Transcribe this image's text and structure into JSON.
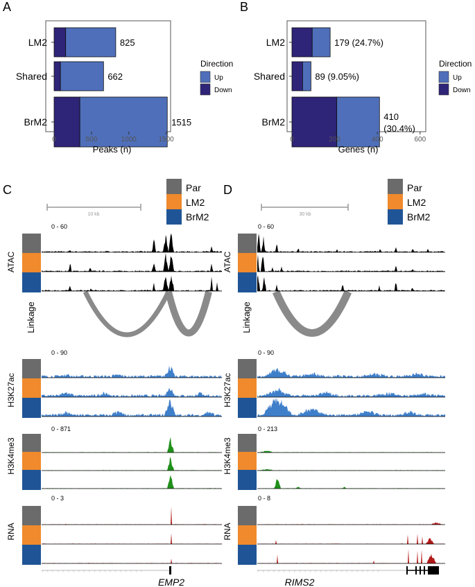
{
  "panel_labels": {
    "a": "A",
    "b": "B",
    "c": "C",
    "d": "D"
  },
  "colors": {
    "up": "#4f6fba",
    "down": "#2e2478",
    "par": "#6b6b6b",
    "lm2": "#f08a2c",
    "brm2": "#1f5596",
    "atac": "#000000",
    "h3k27ac": "#3f7fca",
    "h3k4me3": "#20901a",
    "rna": "#b01818",
    "linkage": "#8a8a8a"
  },
  "legend": {
    "title": "Direction",
    "items": [
      "Up",
      "Down"
    ]
  },
  "chart_data": [
    {
      "type": "bar",
      "orientation": "horizontal",
      "stacked": true,
      "categories": [
        "LM2",
        "Shared",
        "BrM2"
      ],
      "series": [
        {
          "name": "Down",
          "values": [
            155,
            85,
            345
          ]
        },
        {
          "name": "Up",
          "values": [
            670,
            577,
            1170
          ]
        }
      ],
      "totals_labels": [
        "825",
        "662",
        "1515"
      ],
      "xlabel": "Peaks (n)",
      "xlim": [
        0,
        1550
      ],
      "xticks": [
        "0",
        "500",
        "1000",
        "1500"
      ],
      "legend_title": "Direction",
      "legend_items": [
        "Up",
        "Down"
      ]
    },
    {
      "type": "bar",
      "orientation": "horizontal",
      "stacked": true,
      "categories": [
        "LM2",
        "Shared",
        "BrM2"
      ],
      "series": [
        {
          "name": "Down",
          "values": [
            95,
            50,
            210
          ]
        },
        {
          "name": "Up",
          "values": [
            84,
            39,
            200
          ]
        }
      ],
      "totals_labels": [
        "179 (24.7%)",
        "89 (9.05%)",
        "410\n(30.4%)"
      ],
      "xlabel": "Genes (n)",
      "xlim": [
        0,
        620
      ],
      "xticks": [
        "0",
        "200",
        "400",
        "600"
      ],
      "legend_title": "Direction",
      "legend_items": [
        "Up",
        "Down"
      ]
    }
  ],
  "tracks_legend": [
    "Par",
    "LM2",
    "BrM2"
  ],
  "panel_c": {
    "scale_label": "10 kb",
    "track_names": [
      "ATAC",
      "Linkage",
      "H3K27ac",
      "H3K4me3",
      "RNA"
    ],
    "ranges": [
      "0 - 60",
      "0 - 90",
      "0 - 871",
      "0 - 3"
    ],
    "gene": "EMP2"
  },
  "panel_d": {
    "scale_label": "30 kb",
    "track_names": [
      "ATAC",
      "Linkage",
      "H3K27ac",
      "H3K4me3",
      "RNA"
    ],
    "ranges": [
      "0 - 60",
      "0 - 90",
      "0 - 213",
      "0 - 8"
    ],
    "gene": "RIMS2"
  }
}
